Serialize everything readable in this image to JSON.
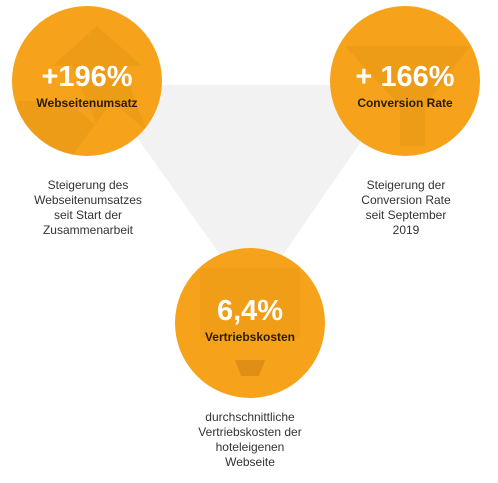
{
  "colors": {
    "circle": "#f7a21b",
    "circle_glyph": "#d98a14",
    "triangle": "#f2f2f2",
    "value_text": "#ffffff",
    "label_text": "#2a1c05",
    "description_text": "#333333"
  },
  "items": [
    {
      "value": "+196%",
      "label": "Webseitenumsatz",
      "description": [
        "Steigerung des",
        "Webseitenumsatzes",
        "seit Start der",
        "Zusammenarbeit"
      ],
      "icon": "growth-arrow-icon"
    },
    {
      "value": "+ 166%",
      "label": "Conversion Rate",
      "description": [
        "Steigerung der",
        "Conversion Rate",
        "seit September",
        "2019"
      ],
      "icon": "funnel-icon"
    },
    {
      "value": "6,4%",
      "label": "Vertriebskosten",
      "description": [
        "durchschnittliche",
        "Vertriebskosten der",
        "hoteleigenen",
        "Webseite"
      ],
      "icon": "monitor-icon"
    }
  ]
}
